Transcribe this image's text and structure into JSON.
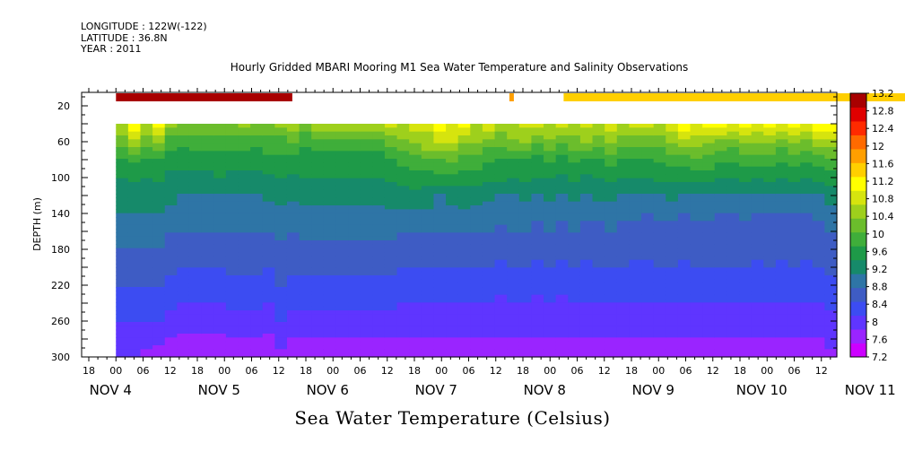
{
  "header": {
    "longitude": "LONGITUDE : 122W(-122)",
    "latitude": "LATITUDE : 36.8N",
    "year": "YEAR : 2011"
  },
  "chart_data": {
    "type": "heatmap",
    "title": "Hourly Gridded MBARI Mooring M1 Sea Water Temperature and Salinity Observations",
    "xlabel": "",
    "ylabel": "DEPTH (m)",
    "colorbar_title": "Sea Water Temperature (Celsius)",
    "y_axis": {
      "inverted": true,
      "range": [
        5,
        300
      ],
      "ticks": [
        20,
        60,
        100,
        140,
        180,
        220,
        260,
        300
      ]
    },
    "x_axis": {
      "hour_labels": [
        "18",
        "00",
        "06",
        "12",
        "18",
        "00",
        "06",
        "12",
        "18",
        "00",
        "06",
        "12",
        "18",
        "00",
        "06",
        "12",
        "18",
        "00",
        "06",
        "12",
        "18",
        "00",
        "06",
        "12",
        "18",
        "00",
        "06",
        "12",
        "18",
        "00",
        "06",
        "12",
        "18",
        "00",
        "06",
        "12"
      ],
      "day_labels": [
        "NOV  4",
        "NOV  5",
        "NOV  6",
        "NOV  7",
        "NOV  8",
        "NOV  9",
        "NOV 10",
        "NOV 11"
      ]
    },
    "colorbar": {
      "levels": [
        7.2,
        7.6,
        8,
        8.4,
        8.8,
        9.2,
        9.6,
        10,
        10.4,
        10.8,
        11.2,
        11.6,
        12,
        12.4,
        12.8,
        13.2
      ],
      "labels": [
        "13.2",
        "12.8",
        "12.4",
        "12",
        "11.6",
        "11.2",
        "10.8",
        "10.4",
        "10",
        "9.6",
        "9.2",
        "8.8",
        "8.4",
        "8",
        "7.6",
        "7.2"
      ],
      "colors": [
        "#cc00ff",
        "#9a24ff",
        "#5f35ff",
        "#3c4cf2",
        "#3e5cc4",
        "#2e75a6",
        "#168a6a",
        "#1e9a48",
        "#3fae3a",
        "#6bbd2c",
        "#9ed01c",
        "#d6e40e",
        "#ffff00",
        "#ffcf00",
        "#ff9f00",
        "#ff6a00",
        "#ff2a00",
        "#e00000",
        "#a80000"
      ]
    },
    "surface_obs": {
      "depth": 10,
      "segments": [
        {
          "x_start": "Nov 4 00",
          "x_end": "Nov 5 15",
          "value": 13.2
        },
        {
          "x_start": "Nov 7 15",
          "x_end": "Nov 7 16",
          "value": 12.6
        },
        {
          "x_start": "Nov 8 03",
          "x_end": "Nov 11 12",
          "value": 12.3
        }
      ]
    },
    "profile_rows": [
      {
        "depth": 40,
        "values": [
          11.2,
          11.9,
          11.2,
          11.8,
          11.0,
          10.8,
          10.8,
          10.7,
          10.8,
          10.8,
          10.9,
          10.8,
          10.7,
          11.0,
          11.0,
          10.6,
          11.2,
          11.2,
          11.2,
          11.2,
          11.2,
          11.2,
          11.3,
          11.2,
          11.5,
          11.3,
          11.9,
          11.2,
          11.8,
          11.2,
          11.7,
          11.0,
          11.2,
          11.3,
          11.3,
          11.2,
          11.5,
          11.1,
          11.3,
          11.2,
          11.4,
          11.2,
          11.4,
          11.3,
          11.2,
          11.5,
          11.9,
          11.6,
          11.9,
          11.8,
          11.5,
          11.8,
          11.5,
          11.7,
          11.6,
          11.9,
          11.6,
          11.9,
          12.0
        ]
      },
      {
        "depth": 60,
        "values": [
          10.6,
          11.0,
          10.6,
          10.9,
          10.2,
          10.1,
          10.2,
          10.2,
          10.2,
          10.2,
          10.2,
          10.1,
          10.2,
          10.2,
          10.5,
          10.1,
          10.2,
          10.2,
          10.2,
          10.2,
          10.2,
          10.2,
          10.6,
          10.7,
          10.8,
          11.1,
          11.2,
          11.2,
          10.9,
          10.8,
          10.6,
          10.5,
          10.7,
          10.9,
          10.5,
          10.7,
          10.5,
          10.7,
          10.8,
          10.6,
          10.8,
          10.6,
          10.6,
          10.5,
          10.6,
          10.8,
          11.0,
          11.0,
          10.9,
          10.7,
          10.6,
          10.9,
          10.8,
          10.9,
          10.6,
          10.9,
          10.7,
          11.0,
          11.1
        ]
      },
      {
        "depth": 80,
        "values": [
          10.0,
          10.1,
          9.9,
          10.0,
          9.8,
          9.8,
          9.8,
          9.8,
          9.8,
          9.8,
          9.8,
          9.8,
          9.9,
          9.9,
          9.9,
          9.8,
          9.8,
          9.8,
          9.8,
          9.8,
          9.8,
          9.8,
          10.0,
          10.1,
          10.3,
          10.4,
          10.3,
          10.5,
          10.3,
          10.2,
          10.1,
          10.0,
          10.0,
          10.0,
          9.9,
          10.1,
          9.9,
          10.1,
          9.9,
          10.0,
          10.2,
          9.9,
          10.0,
          10.0,
          10.1,
          10.2,
          10.2,
          10.3,
          10.3,
          10.1,
          10.1,
          10.2,
          10.2,
          10.2,
          10.1,
          10.2,
          10.1,
          10.2,
          10.3
        ]
      },
      {
        "depth": 100,
        "values": [
          9.6,
          9.7,
          9.6,
          9.7,
          9.5,
          9.5,
          9.5,
          9.5,
          9.6,
          9.5,
          9.5,
          9.5,
          9.5,
          9.6,
          9.5,
          9.6,
          9.6,
          9.6,
          9.6,
          9.6,
          9.6,
          9.6,
          9.7,
          9.8,
          9.8,
          9.8,
          9.9,
          9.8,
          9.8,
          9.8,
          9.7,
          9.7,
          9.6,
          9.7,
          9.6,
          9.6,
          9.5,
          9.7,
          9.5,
          9.6,
          9.7,
          9.6,
          9.6,
          9.6,
          9.7,
          9.7,
          9.7,
          9.8,
          9.7,
          9.6,
          9.6,
          9.7,
          9.6,
          9.7,
          9.6,
          9.7,
          9.6,
          9.7,
          9.8
        ]
      },
      {
        "depth": 120,
        "values": [
          9.4,
          9.4,
          9.3,
          9.4,
          9.3,
          9.2,
          9.2,
          9.2,
          9.2,
          9.2,
          9.2,
          9.2,
          9.3,
          9.3,
          9.3,
          9.3,
          9.3,
          9.3,
          9.3,
          9.3,
          9.3,
          9.3,
          9.4,
          9.4,
          9.5,
          9.4,
          9.2,
          9.3,
          9.4,
          9.3,
          9.3,
          9.2,
          9.2,
          9.3,
          9.2,
          9.3,
          9.2,
          9.3,
          9.2,
          9.3,
          9.3,
          9.2,
          9.2,
          9.2,
          9.2,
          9.3,
          9.2,
          9.2,
          9.2,
          9.2,
          9.1,
          9.2,
          9.1,
          9.2,
          9.2,
          9.2,
          9.1,
          9.2,
          9.4
        ]
      },
      {
        "depth": 140,
        "values": [
          9.2,
          9.2,
          9.2,
          9.2,
          9.1,
          9.0,
          9.0,
          9.0,
          9.0,
          9.0,
          9.0,
          9.1,
          9.0,
          9.1,
          9.0,
          9.1,
          9.1,
          9.1,
          9.1,
          9.1,
          9.1,
          9.1,
          9.1,
          9.1,
          9.1,
          9.1,
          9.0,
          9.1,
          9.1,
          9.1,
          9.0,
          9.0,
          9.0,
          9.0,
          8.9,
          9.0,
          8.9,
          9.0,
          8.9,
          8.9,
          9.0,
          8.9,
          8.9,
          8.8,
          8.9,
          8.9,
          8.8,
          8.9,
          8.9,
          8.8,
          8.8,
          8.9,
          8.8,
          8.8,
          8.8,
          8.8,
          8.8,
          8.9,
          9.0
        ]
      },
      {
        "depth": 160,
        "values": [
          9.0,
          9.0,
          8.9,
          8.9,
          8.8,
          8.8,
          8.8,
          8.8,
          8.8,
          8.8,
          8.8,
          8.8,
          8.8,
          8.9,
          8.8,
          8.9,
          8.9,
          8.9,
          8.9,
          8.9,
          8.9,
          8.9,
          8.9,
          8.8,
          8.8,
          8.8,
          8.8,
          8.8,
          8.8,
          8.8,
          8.8,
          8.7,
          8.8,
          8.8,
          8.7,
          8.8,
          8.7,
          8.8,
          8.7,
          8.7,
          8.8,
          8.7,
          8.7,
          8.7,
          8.7,
          8.7,
          8.6,
          8.7,
          8.7,
          8.7,
          8.7,
          8.7,
          8.6,
          8.7,
          8.6,
          8.6,
          8.6,
          8.7,
          8.8
        ]
      },
      {
        "depth": 180,
        "values": [
          8.8,
          8.8,
          8.8,
          8.8,
          8.7,
          8.6,
          8.6,
          8.6,
          8.6,
          8.6,
          8.6,
          8.7,
          8.6,
          8.7,
          8.6,
          8.7,
          8.7,
          8.7,
          8.7,
          8.7,
          8.7,
          8.7,
          8.7,
          8.6,
          8.6,
          8.6,
          8.6,
          8.6,
          8.6,
          8.6,
          8.6,
          8.5,
          8.6,
          8.6,
          8.5,
          8.6,
          8.5,
          8.6,
          8.5,
          8.5,
          8.6,
          8.5,
          8.5,
          8.5,
          8.5,
          8.5,
          8.5,
          8.5,
          8.5,
          8.5,
          8.5,
          8.5,
          8.5,
          8.5,
          8.5,
          8.5,
          8.5,
          8.5,
          8.6
        ]
      },
      {
        "depth": 200,
        "values": [
          8.6,
          8.6,
          8.6,
          8.6,
          8.5,
          8.4,
          8.4,
          8.4,
          8.4,
          8.5,
          8.5,
          8.5,
          8.4,
          8.6,
          8.5,
          8.5,
          8.5,
          8.5,
          8.5,
          8.5,
          8.5,
          8.5,
          8.5,
          8.4,
          8.4,
          8.4,
          8.4,
          8.4,
          8.4,
          8.4,
          8.4,
          8.3,
          8.4,
          8.4,
          8.3,
          8.4,
          8.3,
          8.4,
          8.3,
          8.4,
          8.4,
          8.4,
          8.3,
          8.3,
          8.4,
          8.4,
          8.3,
          8.4,
          8.4,
          8.4,
          8.4,
          8.4,
          8.3,
          8.4,
          8.3,
          8.4,
          8.3,
          8.4,
          8.5
        ]
      },
      {
        "depth": 220,
        "values": [
          8.4,
          8.4,
          8.4,
          8.4,
          8.3,
          8.2,
          8.2,
          8.2,
          8.2,
          8.3,
          8.3,
          8.3,
          8.2,
          8.4,
          8.3,
          8.3,
          8.3,
          8.3,
          8.3,
          8.3,
          8.3,
          8.3,
          8.3,
          8.2,
          8.2,
          8.2,
          8.2,
          8.2,
          8.2,
          8.2,
          8.2,
          8.1,
          8.2,
          8.2,
          8.1,
          8.2,
          8.1,
          8.2,
          8.2,
          8.2,
          8.2,
          8.2,
          8.2,
          8.2,
          8.2,
          8.2,
          8.2,
          8.2,
          8.2,
          8.2,
          8.2,
          8.2,
          8.2,
          8.2,
          8.2,
          8.2,
          8.2,
          8.2,
          8.3
        ]
      },
      {
        "depth": 240,
        "values": [
          8.2,
          8.2,
          8.2,
          8.2,
          8.1,
          8.0,
          8.0,
          8.0,
          8.0,
          8.1,
          8.1,
          8.1,
          8.0,
          8.2,
          8.1,
          8.1,
          8.1,
          8.1,
          8.1,
          8.1,
          8.1,
          8.1,
          8.1,
          8.0,
          8.0,
          8.0,
          8.0,
          8.0,
          8.0,
          8.0,
          8.0,
          7.9,
          8.0,
          8.0,
          7.9,
          8.0,
          7.9,
          8.0,
          8.0,
          8.0,
          8.0,
          8.0,
          8.0,
          8.0,
          8.0,
          8.0,
          8.0,
          8.0,
          8.0,
          8.0,
          8.0,
          8.0,
          8.0,
          8.0,
          8.0,
          8.0,
          8.0,
          8.0,
          8.1
        ]
      },
      {
        "depth": 260,
        "values": [
          8.0,
          8.0,
          8.0,
          8.0,
          7.9,
          7.8,
          7.8,
          7.8,
          7.8,
          7.9,
          7.9,
          7.9,
          7.8,
          8.0,
          7.9,
          7.9,
          7.9,
          7.9,
          7.9,
          7.9,
          7.9,
          7.9,
          7.9,
          7.8,
          7.8,
          7.8,
          7.8,
          7.8,
          7.8,
          7.8,
          7.8,
          7.8,
          7.8,
          7.8,
          7.8,
          7.8,
          7.8,
          7.8,
          7.8,
          7.8,
          7.8,
          7.8,
          7.8,
          7.8,
          7.8,
          7.8,
          7.8,
          7.8,
          7.8,
          7.8,
          7.8,
          7.8,
          7.8,
          7.8,
          7.8,
          7.8,
          7.8,
          7.8,
          7.9
        ]
      },
      {
        "depth": 280,
        "values": [
          7.8,
          7.8,
          7.8,
          7.7,
          7.6,
          7.5,
          7.5,
          7.5,
          7.5,
          7.6,
          7.6,
          7.6,
          7.5,
          7.7,
          7.6,
          7.6,
          7.6,
          7.6,
          7.6,
          7.6,
          7.6,
          7.6,
          7.6,
          7.6,
          7.6,
          7.6,
          7.6,
          7.6,
          7.6,
          7.6,
          7.6,
          7.6,
          7.6,
          7.6,
          7.6,
          7.6,
          7.6,
          7.6,
          7.6,
          7.6,
          7.6,
          7.6,
          7.6,
          7.6,
          7.6,
          7.6,
          7.6,
          7.6,
          7.6,
          7.6,
          7.6,
          7.6,
          7.6,
          7.6,
          7.6,
          7.6,
          7.6,
          7.6,
          7.7
        ]
      },
      {
        "depth": 300,
        "values": [
          7.6,
          7.6,
          7.5,
          7.4,
          7.3,
          7.3,
          7.3,
          7.3,
          7.3,
          7.4,
          7.4,
          7.3,
          7.3,
          7.5,
          7.4,
          7.4,
          7.3,
          7.3,
          7.3,
          7.3,
          7.3,
          7.3,
          7.4,
          7.4,
          7.4,
          7.4,
          7.4,
          7.4,
          7.4,
          7.4,
          7.4,
          7.4,
          7.4,
          7.4,
          7.4,
          7.4,
          7.4,
          7.4,
          7.4,
          7.4,
          7.4,
          7.4,
          7.4,
          7.4,
          7.4,
          7.4,
          7.4,
          7.4,
          7.4,
          7.4,
          7.4,
          7.4,
          7.4,
          7.4,
          7.4,
          7.4,
          7.4,
          7.4,
          7.5
        ]
      }
    ]
  }
}
